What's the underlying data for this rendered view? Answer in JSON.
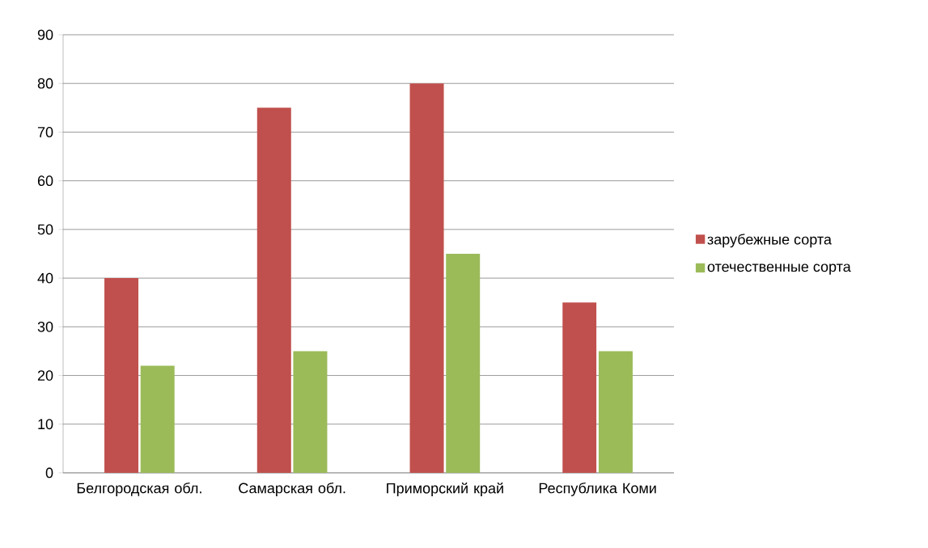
{
  "chart_data": {
    "type": "bar",
    "categories": [
      "Белгородская обл.",
      "Самарская обл.",
      "Приморский край",
      "Республика Коми"
    ],
    "series": [
      {
        "name": "зарубежные сорта",
        "color": "#c0504d",
        "values": [
          40,
          75,
          80,
          35
        ]
      },
      {
        "name": "отечественные сорта",
        "color": "#9bbb59",
        "values": [
          22,
          25,
          45,
          25
        ]
      }
    ],
    "ylim": [
      0,
      90
    ],
    "yticks": [
      0,
      10,
      20,
      30,
      40,
      50,
      60,
      70,
      80,
      90
    ],
    "grid": "y",
    "legend": "right"
  }
}
